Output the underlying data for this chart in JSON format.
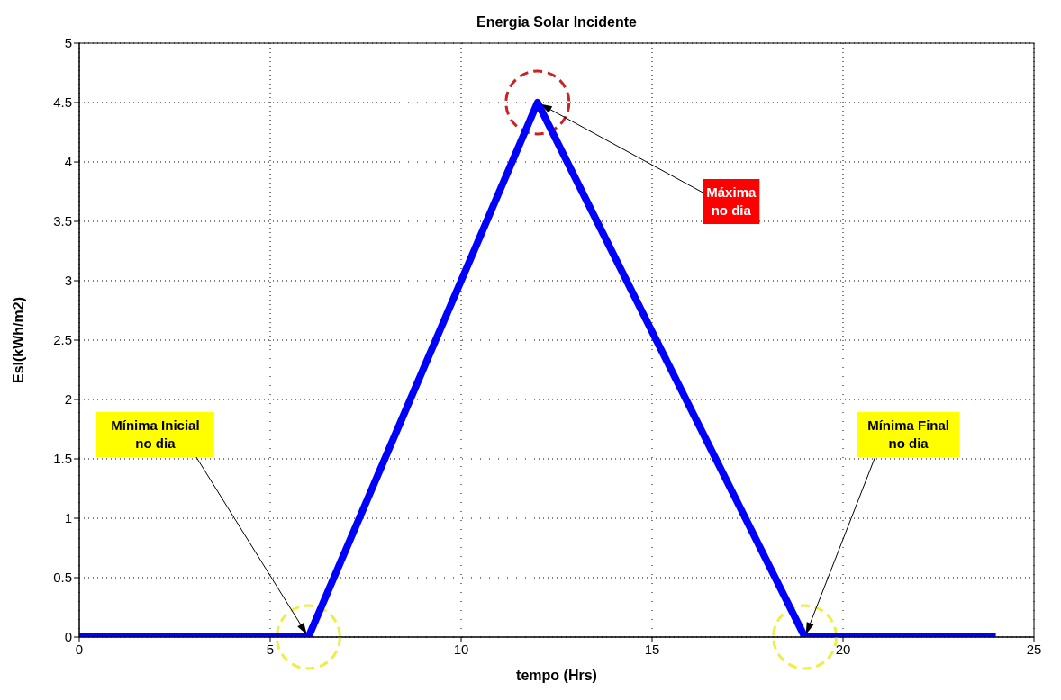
{
  "chart_data": {
    "type": "line",
    "title": "Energia Solar Incidente",
    "xlabel": "tempo (Hrs)",
    "ylabel": "Esl(kWh/m2)",
    "x": [
      0,
      6,
      12,
      19,
      24
    ],
    "series": [
      {
        "color": "#0000ff",
        "values": [
          0,
          0,
          4.5,
          0,
          0
        ]
      }
    ],
    "xlim": [
      0,
      25
    ],
    "xticks": [
      0,
      5,
      10,
      15,
      20,
      25
    ],
    "ylim": [
      0,
      5
    ],
    "yticks": [
      0,
      0.5,
      1,
      1.5,
      2,
      2.5,
      3,
      3.5,
      4,
      4.5,
      5
    ],
    "grid": true,
    "marker": "none",
    "line_style": "solid",
    "legend": false,
    "annotations": [
      {
        "text": "Mínima Inicial\nno dia",
        "x": 6,
        "y": 0
      },
      {
        "text": "Máxima\nno dia",
        "x": 12,
        "y": 4.5
      },
      {
        "text": "Mínima Final\nno dia",
        "x": 19,
        "y": 0
      }
    ]
  }
}
